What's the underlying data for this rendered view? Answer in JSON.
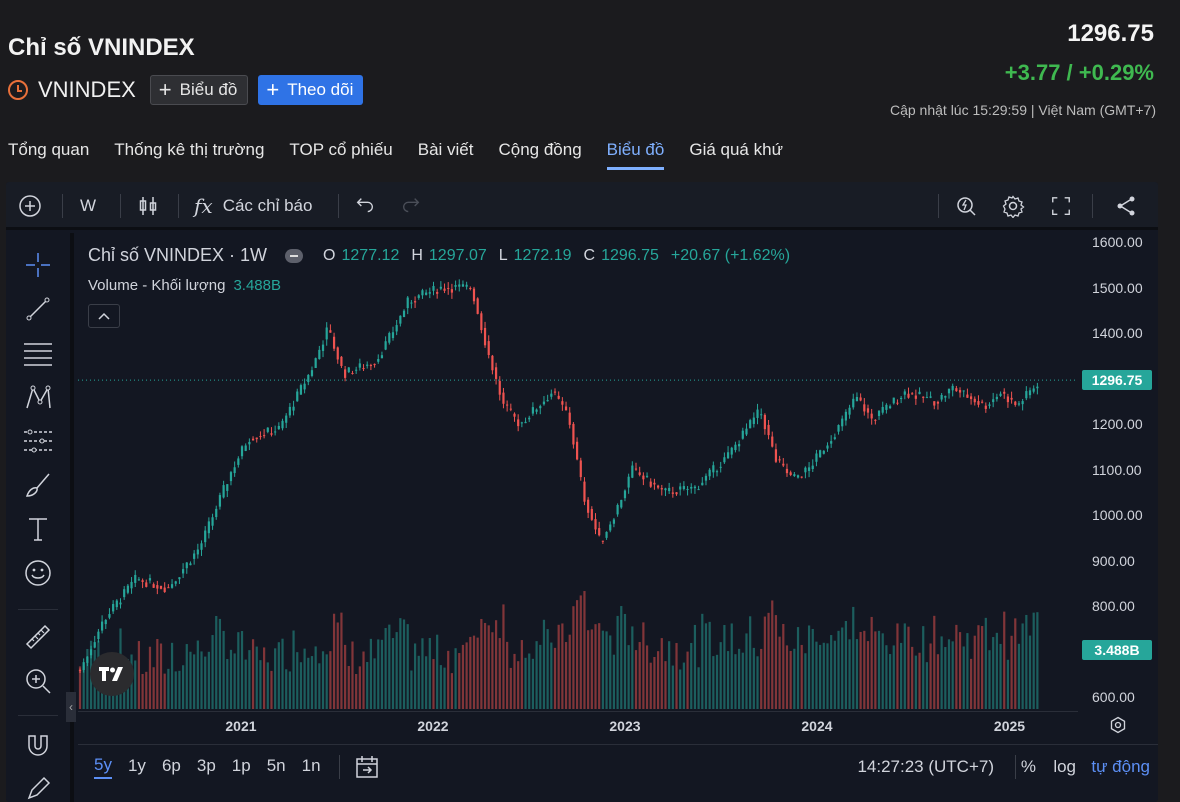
{
  "header": {
    "title": "Chỉ số VNINDEX",
    "symbol": "VNINDEX",
    "chart_button": "Biểu đồ",
    "follow_button": "Theo dõi",
    "price": "1296.75",
    "change": "+3.77 / +0.29%",
    "updated": "Cập nhật lúc  15:29:59 | Việt Nam (GMT+7)"
  },
  "tabs": [
    "Tổng quan",
    "Thống kê thị trường",
    "TOP cổ phiếu",
    "Bài viết",
    "Cộng đồng",
    "Biểu đồ",
    "Giá quá khứ"
  ],
  "active_tab": "Biểu đồ",
  "toolbar": {
    "interval": "W",
    "indicators": "Các chỉ báo"
  },
  "legend": {
    "name": "Chỉ số VNINDEX · 1W",
    "o_label": "O",
    "o": "1277.12",
    "h_label": "H",
    "h": "1297.07",
    "l_label": "L",
    "l": "1272.19",
    "c_label": "C",
    "c": "1296.75",
    "chg": "+20.67 (+1.62%)",
    "volume_label": "Volume - Khối lượng",
    "volume_value": "3.488B"
  },
  "price_tag": "1296.75",
  "volume_tag": "3.488B",
  "bottom": {
    "ranges": [
      "5y",
      "1y",
      "6p",
      "3p",
      "1p",
      "5n",
      "1n"
    ],
    "active_range": "5y",
    "time": "14:27:23 (UTC+7)",
    "percent": "%",
    "log": "log",
    "auto": "tự động"
  },
  "colors": {
    "up": "#26a69a",
    "down": "#ef5350",
    "accent": "#2f73e6"
  },
  "chart_data": {
    "type": "candlestick",
    "interval": "1W",
    "y_axis_ticks": [
      "1600.00",
      "1500.00",
      "1400.00",
      "1300.00",
      "1200.00",
      "1100.00",
      "1000.00",
      "900.00",
      "800.00",
      "700.00",
      "600.00"
    ],
    "ylim": [
      570,
      1620
    ],
    "x_axis_ticks": [
      "2021",
      "2022",
      "2023",
      "2024",
      "2025"
    ],
    "series": [
      {
        "name": "close",
        "points": [
          [
            "2020-03",
            660
          ],
          [
            "2020-04",
            770
          ],
          [
            "2020-06",
            860
          ],
          [
            "2020-08",
            840
          ],
          [
            "2020-10",
            930
          ],
          [
            "2020-12",
            1100
          ],
          [
            "2021-01",
            1170
          ],
          [
            "2021-03",
            1190
          ],
          [
            "2021-05",
            1320
          ],
          [
            "2021-06",
            1410
          ],
          [
            "2021-07",
            1310
          ],
          [
            "2021-09",
            1340
          ],
          [
            "2021-10",
            1400
          ],
          [
            "2021-11",
            1470
          ],
          [
            "2022-01",
            1500
          ],
          [
            "2022-03",
            1500
          ],
          [
            "2022-04",
            1360
          ],
          [
            "2022-05",
            1240
          ],
          [
            "2022-06",
            1200
          ],
          [
            "2022-08",
            1270
          ],
          [
            "2022-09",
            1220
          ],
          [
            "2022-10",
            1040
          ],
          [
            "2022-11",
            940
          ],
          [
            "2022-12",
            1010
          ],
          [
            "2023-01",
            1100
          ],
          [
            "2023-03",
            1050
          ],
          [
            "2023-05",
            1060
          ],
          [
            "2023-07",
            1130
          ],
          [
            "2023-09",
            1230
          ],
          [
            "2023-10",
            1120
          ],
          [
            "2023-11",
            1080
          ],
          [
            "2023-12",
            1100
          ],
          [
            "2024-02",
            1200
          ],
          [
            "2024-03",
            1260
          ],
          [
            "2024-04",
            1210
          ],
          [
            "2024-06",
            1270
          ],
          [
            "2024-08",
            1250
          ],
          [
            "2024-09",
            1280
          ],
          [
            "2024-11",
            1240
          ],
          [
            "2024-12",
            1270
          ],
          [
            "2025-01",
            1240
          ],
          [
            "2025-02",
            1296.75
          ]
        ]
      }
    ],
    "volume": {
      "last": "3.488B"
    }
  }
}
